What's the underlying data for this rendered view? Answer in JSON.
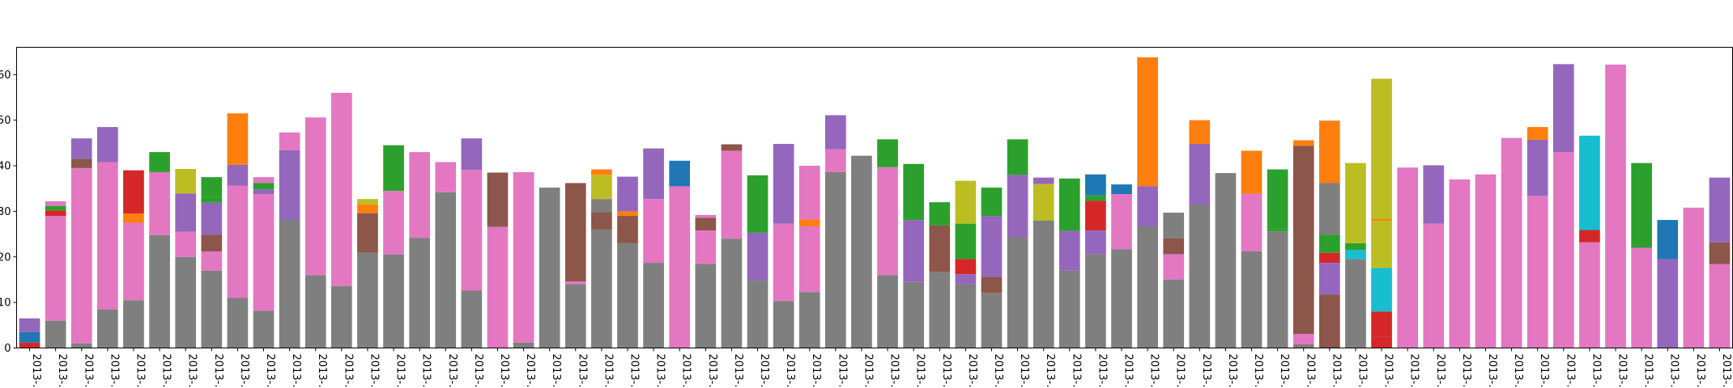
{
  "chart_data": {
    "type": "bar",
    "stacked": true,
    "title": "",
    "xlabel": "",
    "ylabel": "",
    "ylim": [
      0,
      66
    ],
    "yticks": [
      0,
      10,
      20,
      30,
      40,
      50,
      60
    ],
    "ytick_labels": [
      "0",
      "10",
      "20",
      "30",
      "40",
      "50",
      "60"
    ],
    "grid": false,
    "legend": "none",
    "categories": [
      "2013-…",
      "2013-…",
      "2013-…",
      "2013-…",
      "2013-…",
      "2013-…",
      "2013-…",
      "2013-…",
      "2013-…",
      "2013-…",
      "2013-…",
      "2013-…",
      "2013-…",
      "2013-…",
      "2013-…",
      "2013-…",
      "2013-…",
      "2013-…",
      "2013-…",
      "2013-…",
      "2013-…",
      "2013-…",
      "2013-…",
      "2013-…",
      "2013-…",
      "2013-…",
      "2013-…",
      "2013-…",
      "2013-…",
      "2013-…",
      "2013-…",
      "2013-…",
      "2013-…",
      "2013-…",
      "2013-…",
      "2013-…",
      "2013-…",
      "2013-…",
      "2013-…",
      "2013-…",
      "2013-…",
      "2013-…",
      "2013-…",
      "2013-…",
      "2013-…",
      "2013-…",
      "2013-…",
      "2013-…",
      "2013-…",
      "2013-…",
      "2013-…",
      "2013-…",
      "2013-…",
      "2013-…",
      "2013-…",
      "2013-…",
      "2013-…",
      "2013-…",
      "2013-…",
      "2013-…",
      "2013-…",
      "2013-…",
      "2013-…",
      "2013-…",
      "2013-…",
      "2013-…"
    ],
    "colors": {
      "gray": "#7f7f7f",
      "pink": "#e377c2",
      "purple": "#9467bd",
      "brown": "#8c564b",
      "red": "#d62728",
      "green": "#2ca02c",
      "orange": "#ff7f0e",
      "blue": "#1f77b4",
      "olive": "#bcbd22",
      "cyan": "#17becf"
    },
    "bars": [
      [
        [
          "red",
          1.2
        ],
        [
          "blue",
          2.3
        ],
        [
          "purple",
          3.0
        ]
      ],
      [
        [
          "gray",
          6.0
        ],
        [
          "pink",
          23.0
        ],
        [
          "red",
          1.2
        ],
        [
          "green",
          1.0
        ],
        [
          "pink",
          1.0
        ]
      ],
      [
        [
          "gray",
          1.0
        ],
        [
          "pink",
          38.5
        ],
        [
          "brown",
          2.0
        ],
        [
          "purple",
          4.5
        ]
      ],
      [
        [
          "gray",
          8.5
        ],
        [
          "pink",
          32.3
        ],
        [
          "purple",
          7.7
        ]
      ],
      [
        [
          "gray",
          10.5
        ],
        [
          "pink",
          17.0
        ],
        [
          "orange",
          2.0
        ],
        [
          "red",
          9.5
        ]
      ],
      [
        [
          "gray",
          24.8
        ],
        [
          "pink",
          13.8
        ],
        [
          "green",
          4.4
        ]
      ],
      [
        [
          "gray",
          20.0
        ],
        [
          "pink",
          5.5
        ],
        [
          "purple",
          8.4
        ],
        [
          "olive",
          5.4
        ]
      ],
      [
        [
          "gray",
          17.0
        ],
        [
          "pink",
          4.2
        ],
        [
          "brown",
          3.7
        ],
        [
          "purple",
          7.0
        ],
        [
          "green",
          1.3
        ],
        [
          "green",
          4.3
        ]
      ],
      [
        [
          "gray",
          11.0
        ],
        [
          "pink",
          24.6
        ],
        [
          "purple",
          4.6
        ],
        [
          "orange",
          11.3
        ]
      ],
      [
        [
          "gray",
          8.2
        ],
        [
          "pink",
          25.6
        ],
        [
          "purple",
          1.0
        ],
        [
          "green",
          1.4
        ],
        [
          "pink",
          1.3
        ]
      ],
      [
        [
          "gray",
          28.2
        ],
        [
          "purple",
          15.2
        ],
        [
          "pink",
          3.9
        ]
      ],
      [
        [
          "gray",
          16.0
        ],
        [
          "pink",
          34.6
        ]
      ],
      [
        [
          "gray",
          13.6
        ],
        [
          "pink",
          42.4
        ]
      ],
      [
        [
          "gray",
          20.9
        ],
        [
          "brown",
          8.7
        ],
        [
          "orange",
          1.9
        ],
        [
          "olive",
          1.2
        ]
      ],
      [
        [
          "gray",
          20.5
        ],
        [
          "pink",
          14.0
        ],
        [
          "green",
          10.0
        ]
      ],
      [
        [
          "gray",
          24.2
        ],
        [
          "pink",
          18.8
        ]
      ],
      [
        [
          "gray",
          34.2
        ],
        [
          "pink",
          6.6
        ]
      ],
      [
        [
          "gray",
          12.6
        ],
        [
          "pink",
          26.5
        ],
        [
          "purple",
          6.9
        ]
      ],
      [
        [
          "pink",
          26.6
        ],
        [
          "brown",
          11.9
        ]
      ],
      [
        [
          "gray",
          1.2
        ],
        [
          "pink",
          37.4
        ]
      ],
      [
        [
          "gray",
          35.2
        ]
      ],
      [
        [
          "gray",
          14.0
        ],
        [
          "pink",
          0.6
        ],
        [
          "brown",
          21.6
        ]
      ],
      [
        [
          "gray",
          26.0
        ],
        [
          "brown",
          3.8
        ],
        [
          "gray",
          2.9
        ],
        [
          "olive",
          5.3
        ],
        [
          "orange",
          1.2
        ]
      ],
      [
        [
          "gray",
          23.0
        ],
        [
          "brown",
          6.0
        ],
        [
          "orange",
          1.0
        ],
        [
          "purple",
          7.6
        ]
      ],
      [
        [
          "gray",
          18.7
        ],
        [
          "pink",
          14.0
        ],
        [
          "purple",
          11.1
        ]
      ],
      [
        [
          "pink",
          35.5
        ],
        [
          "blue",
          5.6
        ]
      ],
      [
        [
          "gray",
          18.5
        ],
        [
          "pink",
          7.3
        ],
        [
          "brown",
          2.8
        ],
        [
          "pink",
          0.6
        ]
      ],
      [
        [
          "gray",
          24.0
        ],
        [
          "pink",
          19.3
        ],
        [
          "brown",
          1.4
        ]
      ],
      [
        [
          "gray",
          14.8
        ],
        [
          "purple",
          10.5
        ],
        [
          "green",
          12.6
        ]
      ],
      [
        [
          "gray",
          10.3
        ],
        [
          "pink",
          17.0
        ],
        [
          "purple",
          17.5
        ]
      ],
      [
        [
          "gray",
          12.3
        ],
        [
          "pink",
          14.4
        ],
        [
          "orange",
          1.5
        ],
        [
          "pink",
          11.8
        ]
      ],
      [
        [
          "gray",
          38.6
        ],
        [
          "pink",
          5.0
        ],
        [
          "purple",
          7.5
        ]
      ],
      [
        [
          "gray",
          42.2
        ]
      ],
      [
        [
          "gray",
          16.0
        ],
        [
          "pink",
          23.7
        ],
        [
          "green",
          6.1
        ]
      ],
      [
        [
          "gray",
          14.5
        ],
        [
          "purple",
          13.6
        ],
        [
          "green",
          12.3
        ]
      ],
      [
        [
          "gray",
          16.7
        ],
        [
          "brown",
          10.2
        ],
        [
          "green",
          5.1
        ]
      ],
      [
        [
          "gray",
          14.0
        ],
        [
          "purple",
          2.2
        ],
        [
          "red",
          3.3
        ],
        [
          "green",
          7.8
        ],
        [
          "olive",
          9.4
        ]
      ],
      [
        [
          "gray",
          12.1
        ],
        [
          "brown",
          3.5
        ],
        [
          "purple",
          13.4
        ],
        [
          "green",
          6.2
        ]
      ],
      [
        [
          "gray",
          24.3
        ],
        [
          "purple",
          13.7
        ],
        [
          "green",
          7.8
        ]
      ],
      [
        [
          "gray",
          28.0
        ],
        [
          "olive",
          8.0
        ],
        [
          "purple",
          1.4
        ]
      ],
      [
        [
          "gray",
          17.0
        ],
        [
          "purple",
          8.7
        ],
        [
          "green",
          11.5
        ]
      ],
      [
        [
          "gray",
          20.6
        ],
        [
          "purple",
          5.2
        ],
        [
          "red",
          6.5
        ],
        [
          "green",
          1.2
        ],
        [
          "blue",
          4.6
        ]
      ],
      [
        [
          "gray",
          21.7
        ],
        [
          "pink",
          12.1
        ],
        [
          "blue",
          2.1
        ]
      ],
      [
        [
          "gray",
          26.7
        ],
        [
          "purple",
          8.8
        ],
        [
          "orange",
          28.3
        ]
      ],
      [
        [
          "gray",
          15.0
        ],
        [
          "pink",
          5.6
        ],
        [
          "brown",
          3.5
        ],
        [
          "gray",
          5.6
        ]
      ],
      [
        [
          "gray",
          31.5
        ],
        [
          "purple",
          13.3
        ],
        [
          "orange",
          5.2
        ]
      ],
      [
        [
          "gray",
          38.4
        ]
      ],
      [
        [
          "gray",
          21.2
        ],
        [
          "pink",
          12.7
        ],
        [
          "orange",
          9.4
        ]
      ],
      [
        [
          "gray",
          25.6
        ],
        [
          "green",
          0.5
        ],
        [
          "green",
          13.1
        ]
      ],
      [
        [
          "gray",
          0.8
        ],
        [
          "pink",
          2.3
        ],
        [
          "brown",
          41.3
        ],
        [
          "orange",
          1.2
        ]
      ],
      [
        [
          "brown",
          11.7
        ],
        [
          "purple",
          7.0
        ],
        [
          "red",
          2.2
        ],
        [
          "green",
          4.0
        ],
        [
          "gray",
          11.3
        ],
        [
          "orange",
          13.7
        ]
      ],
      [
        [
          "gray",
          19.5
        ],
        [
          "cyan",
          2.0
        ],
        [
          "green",
          1.5
        ],
        [
          "olive",
          17.6
        ]
      ],
      [
        [
          "red",
          2.5
        ],
        [
          "red",
          5.5
        ],
        [
          "cyan",
          9.6
        ],
        [
          "olive",
          10.3
        ],
        [
          "orange",
          0.4
        ],
        [
          "olive",
          30.8
        ]
      ],
      [
        [
          "pink",
          39.6
        ]
      ],
      [
        [
          "pink",
          27.3
        ],
        [
          "purple",
          12.8
        ]
      ],
      [
        [
          "pink",
          37.0
        ]
      ],
      [
        [
          "pink",
          38.1
        ]
      ],
      [
        [
          "pink",
          46.1
        ]
      ],
      [
        [
          "pink",
          33.4
        ],
        [
          "purple",
          12.3
        ],
        [
          "orange",
          2.8
        ]
      ],
      [
        [
          "pink",
          43.0
        ],
        [
          "purple",
          19.3
        ]
      ],
      [
        [
          "pink",
          23.2
        ],
        [
          "red",
          2.7
        ],
        [
          "cyan",
          20.7
        ]
      ],
      [
        [
          "pink",
          62.2
        ]
      ],
      [
        [
          "pink",
          22.0
        ],
        [
          "green",
          18.6
        ]
      ],
      [
        [
          "purple",
          19.5
        ],
        [
          "blue",
          8.6
        ]
      ],
      [
        [
          "pink",
          30.8
        ]
      ],
      [
        [
          "pink",
          18.4
        ],
        [
          "brown",
          4.8
        ],
        [
          "purple",
          14.2
        ]
      ]
    ]
  }
}
